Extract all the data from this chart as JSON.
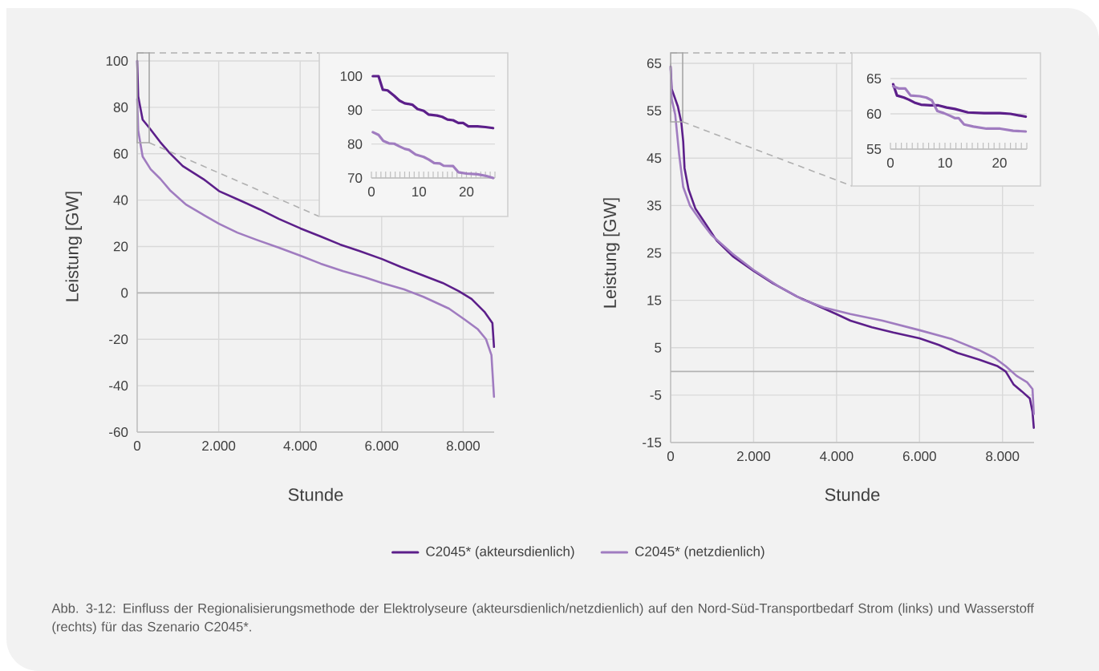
{
  "chart_data": [
    {
      "type": "line",
      "xlabel": "Stunde",
      "ylabel": "Leistung [GW]",
      "xlim": [
        0,
        8760
      ],
      "ylim": [
        -60,
        100
      ],
      "xticks": [
        0,
        {
          "value": 2000,
          "label": "2.000"
        },
        {
          "value": 4000,
          "label": "4.000"
        },
        {
          "value": 6000,
          "label": "6.000"
        },
        {
          "value": 8000,
          "label": "8.000"
        }
      ],
      "yticks": [
        -60,
        -40,
        -20,
        0,
        20,
        40,
        60,
        80,
        100
      ],
      "grid": true,
      "legend": "bottom",
      "ref_lines": [
        {
          "axis": "y",
          "value": 0,
          "color": "#b3b3b3"
        }
      ],
      "annotations": [
        "Abb. 3-12: Einfluss der Regionalisierungsmethode der Elektrolyseure (akteursdienlich/netzdienlich) auf den Nord-Süd-Transportbedarf Strom (links) und Wasserstoff (rechts) für das Szenario C2045*."
      ],
      "series": [
        {
          "name": "C2045* (akteursdienlich)",
          "color": "#5c1f8a",
          "x": [
            0,
            25,
            134,
            291,
            567,
            803,
            1118,
            1630,
            2008,
            2535,
            3008,
            3480,
            4008,
            4504,
            4976,
            5449,
            6008,
            6472,
            7024,
            7496,
            7890,
            8205,
            8520,
            8717,
            8756
          ],
          "values": [
            100,
            84.7,
            74.7,
            71.3,
            65,
            60.2,
            54.7,
            49,
            43.9,
            39.8,
            36,
            31.9,
            27.8,
            24.3,
            20.9,
            18.1,
            14.6,
            11.2,
            7.5,
            4.3,
            0.8,
            -2.6,
            -8.1,
            -13,
            -23.3
          ]
        },
        {
          "name": "C2045* (netzdienlich)",
          "color": "#a07cc0",
          "x": [
            0,
            25,
            134,
            331,
            567,
            803,
            1197,
            1590,
            2008,
            2457,
            2929,
            3480,
            4008,
            4504,
            5055,
            5606,
            6008,
            6551,
            7024,
            7654,
            8047,
            8362,
            8559,
            8693,
            8756
          ],
          "values": [
            83.5,
            70,
            58.8,
            53.3,
            49.2,
            44.3,
            38.1,
            34,
            29.8,
            26,
            22.9,
            19.5,
            16,
            12.6,
            9.4,
            6.6,
            4.3,
            1.5,
            -1.7,
            -6.8,
            -11.6,
            -15.7,
            -19.9,
            -26.8,
            -44.8
          ]
        }
      ]
    },
    {
      "type": "line",
      "xlim": [
        0,
        26
      ],
      "ylim": [
        70,
        100
      ],
      "grid": "y",
      "xticks": [
        0,
        {
          "value": 1,
          "label": null
        },
        {
          "value": 2,
          "label": null
        },
        {
          "value": 3,
          "label": null
        },
        {
          "value": 4,
          "label": null
        },
        {
          "value": 5,
          "label": null
        },
        {
          "value": 6,
          "label": null
        },
        {
          "value": 7,
          "label": null
        },
        {
          "value": 8,
          "label": null
        },
        {
          "value": 9,
          "label": null
        },
        10,
        {
          "value": 11,
          "label": null
        },
        {
          "value": 12,
          "label": null
        },
        {
          "value": 13,
          "label": null
        },
        {
          "value": 14,
          "label": null
        },
        {
          "value": 15,
          "label": null
        },
        {
          "value": 16,
          "label": null
        },
        {
          "value": 17,
          "label": null
        },
        {
          "value": 18,
          "label": null
        },
        {
          "value": 19,
          "label": null
        },
        20,
        {
          "value": 21,
          "label": null
        },
        {
          "value": 22,
          "label": null
        },
        {
          "value": 23,
          "label": null
        },
        {
          "value": 24,
          "label": null
        },
        {
          "value": 25,
          "label": null
        },
        {
          "value": 26,
          "label": null
        }
      ],
      "yticks": [
        70,
        80,
        90,
        100
      ],
      "series": [
        {
          "color": "#5c1f8a",
          "x": [
            0.3,
            1.5,
            2.4,
            3.4,
            4.8,
            5.9,
            7,
            8.6,
            9.7,
            11,
            12,
            13.8,
            14.9,
            16,
            17.2,
            18.3,
            19.3,
            20.4,
            22.3,
            24,
            25.6
          ],
          "values": [
            100,
            100,
            96,
            95.8,
            94.2,
            92.8,
            92,
            91.6,
            90.3,
            89.8,
            88.7,
            88.4,
            88,
            87.2,
            87,
            86.2,
            86.2,
            85.2,
            85.2,
            85,
            84.7
          ]
        },
        {
          "color": "#a07cc0",
          "x": [
            0.3,
            1.5,
            2.5,
            3.7,
            4.8,
            5.9,
            7,
            7.9,
            9.3,
            11,
            12.1,
            13.2,
            14.4,
            15.2,
            17.2,
            18.3,
            20,
            22.3,
            24.2,
            25.6
          ],
          "values": [
            83.5,
            82.7,
            80.9,
            80.2,
            80.1,
            79.3,
            78.6,
            78.3,
            76.9,
            76.2,
            75.4,
            74.4,
            74.3,
            73.6,
            73.5,
            71.7,
            71.3,
            71.1,
            70.6,
            70
          ]
        }
      ]
    },
    {
      "type": "line",
      "xlabel": "Stunde",
      "ylabel": "Leistung [GW]",
      "xlim": [
        0,
        8760
      ],
      "ylim": [
        -15,
        65
      ],
      "xticks": [
        0,
        {
          "value": 2000,
          "label": "2.000"
        },
        {
          "value": 4000,
          "label": "4.000"
        },
        {
          "value": 6000,
          "label": "6.000"
        },
        {
          "value": 8000,
          "label": "8.000"
        }
      ],
      "yticks": [
        -15,
        -5,
        5,
        15,
        25,
        35,
        45,
        55,
        65
      ],
      "grid": true,
      "ref_lines": [
        {
          "axis": "y",
          "value": 0,
          "color": "#b3b3b3"
        }
      ],
      "series": [
        {
          "color": "#5c1f8a",
          "x": [
            0,
            25,
            174,
            258,
            303,
            335,
            432,
            594,
            852,
            1110,
            1497,
            2000,
            2465,
            3045,
            3561,
            3994,
            4335,
            4852,
            5368,
            6000,
            6465,
            6916,
            7432,
            7884,
            8077,
            8271,
            8465,
            8658,
            8723,
            8755
          ],
          "values": [
            64.3,
            59.6,
            55.9,
            52.5,
            48.5,
            42.9,
            38.4,
            34.4,
            31,
            27.6,
            24.3,
            21.2,
            18.6,
            15.8,
            13.8,
            12.1,
            10.7,
            9.3,
            8.2,
            7,
            5.6,
            3.9,
            2.5,
            1.1,
            0,
            -2.8,
            -4.2,
            -5.7,
            -8.5,
            -11.9
          ]
        },
        {
          "color": "#a07cc0",
          "x": [
            0,
            25,
            110,
            206,
            303,
            465,
            787,
            981,
            1497,
            2000,
            2594,
            3174,
            3690,
            4335,
            5110,
            6000,
            6787,
            7432,
            7819,
            8077,
            8335,
            8594,
            8723,
            8755
          ],
          "values": [
            63.9,
            57.5,
            54.2,
            45.7,
            38.9,
            35,
            31,
            28.8,
            24.8,
            21.4,
            18,
            15.2,
            13.5,
            12.1,
            10.7,
            8.7,
            6.8,
            4.5,
            2.8,
            1.1,
            -0.9,
            -2.3,
            -3.7,
            -9
          ]
        }
      ]
    },
    {
      "type": "line",
      "xlim": [
        0,
        25
      ],
      "ylim": [
        55,
        65
      ],
      "grid": "y",
      "xticks": [
        0,
        {
          "value": 1,
          "label": null
        },
        {
          "value": 2,
          "label": null
        },
        {
          "value": 3,
          "label": null
        },
        {
          "value": 4,
          "label": null
        },
        {
          "value": 5,
          "label": null
        },
        {
          "value": 6,
          "label": null
        },
        {
          "value": 7,
          "label": null
        },
        {
          "value": 8,
          "label": null
        },
        {
          "value": 9,
          "label": null
        },
        10,
        {
          "value": 11,
          "label": null
        },
        {
          "value": 12,
          "label": null
        },
        {
          "value": 13,
          "label": null
        },
        {
          "value": 14,
          "label": null
        },
        {
          "value": 15,
          "label": null
        },
        {
          "value": 16,
          "label": null
        },
        {
          "value": 17,
          "label": null
        },
        {
          "value": 18,
          "label": null
        },
        {
          "value": 19,
          "label": null
        },
        20,
        {
          "value": 21,
          "label": null
        },
        {
          "value": 22,
          "label": null
        },
        {
          "value": 23,
          "label": null
        },
        {
          "value": 24,
          "label": null
        },
        {
          "value": 25,
          "label": null
        }
      ],
      "yticks": [
        55,
        60,
        65
      ],
      "series": [
        {
          "color": "#5c1f8a",
          "x": [
            0.5,
            1.2,
            2.5,
            3.4,
            4.4,
            5.6,
            7.4,
            8.8,
            10.3,
            11.8,
            14.2,
            17.2,
            20.1,
            22,
            24.8
          ],
          "values": [
            64.2,
            62.6,
            62.3,
            62,
            61.6,
            61.3,
            61.2,
            61.2,
            60.9,
            60.7,
            60.2,
            60.1,
            60.1,
            60,
            59.6
          ]
        },
        {
          "color": "#a07cc0",
          "x": [
            0.5,
            1.5,
            2.7,
            3.7,
            5.4,
            6.6,
            7.6,
            8.6,
            9.8,
            11,
            11.8,
            12.5,
            13.5,
            15.2,
            17.6,
            20.1,
            22.5,
            24.8
          ],
          "values": [
            63.9,
            63.6,
            63.6,
            62.6,
            62.5,
            62.3,
            61.9,
            60.4,
            60.1,
            59.7,
            59.4,
            59.4,
            58.5,
            58.2,
            57.9,
            57.9,
            57.6,
            57.5
          ]
        }
      ]
    }
  ]
}
